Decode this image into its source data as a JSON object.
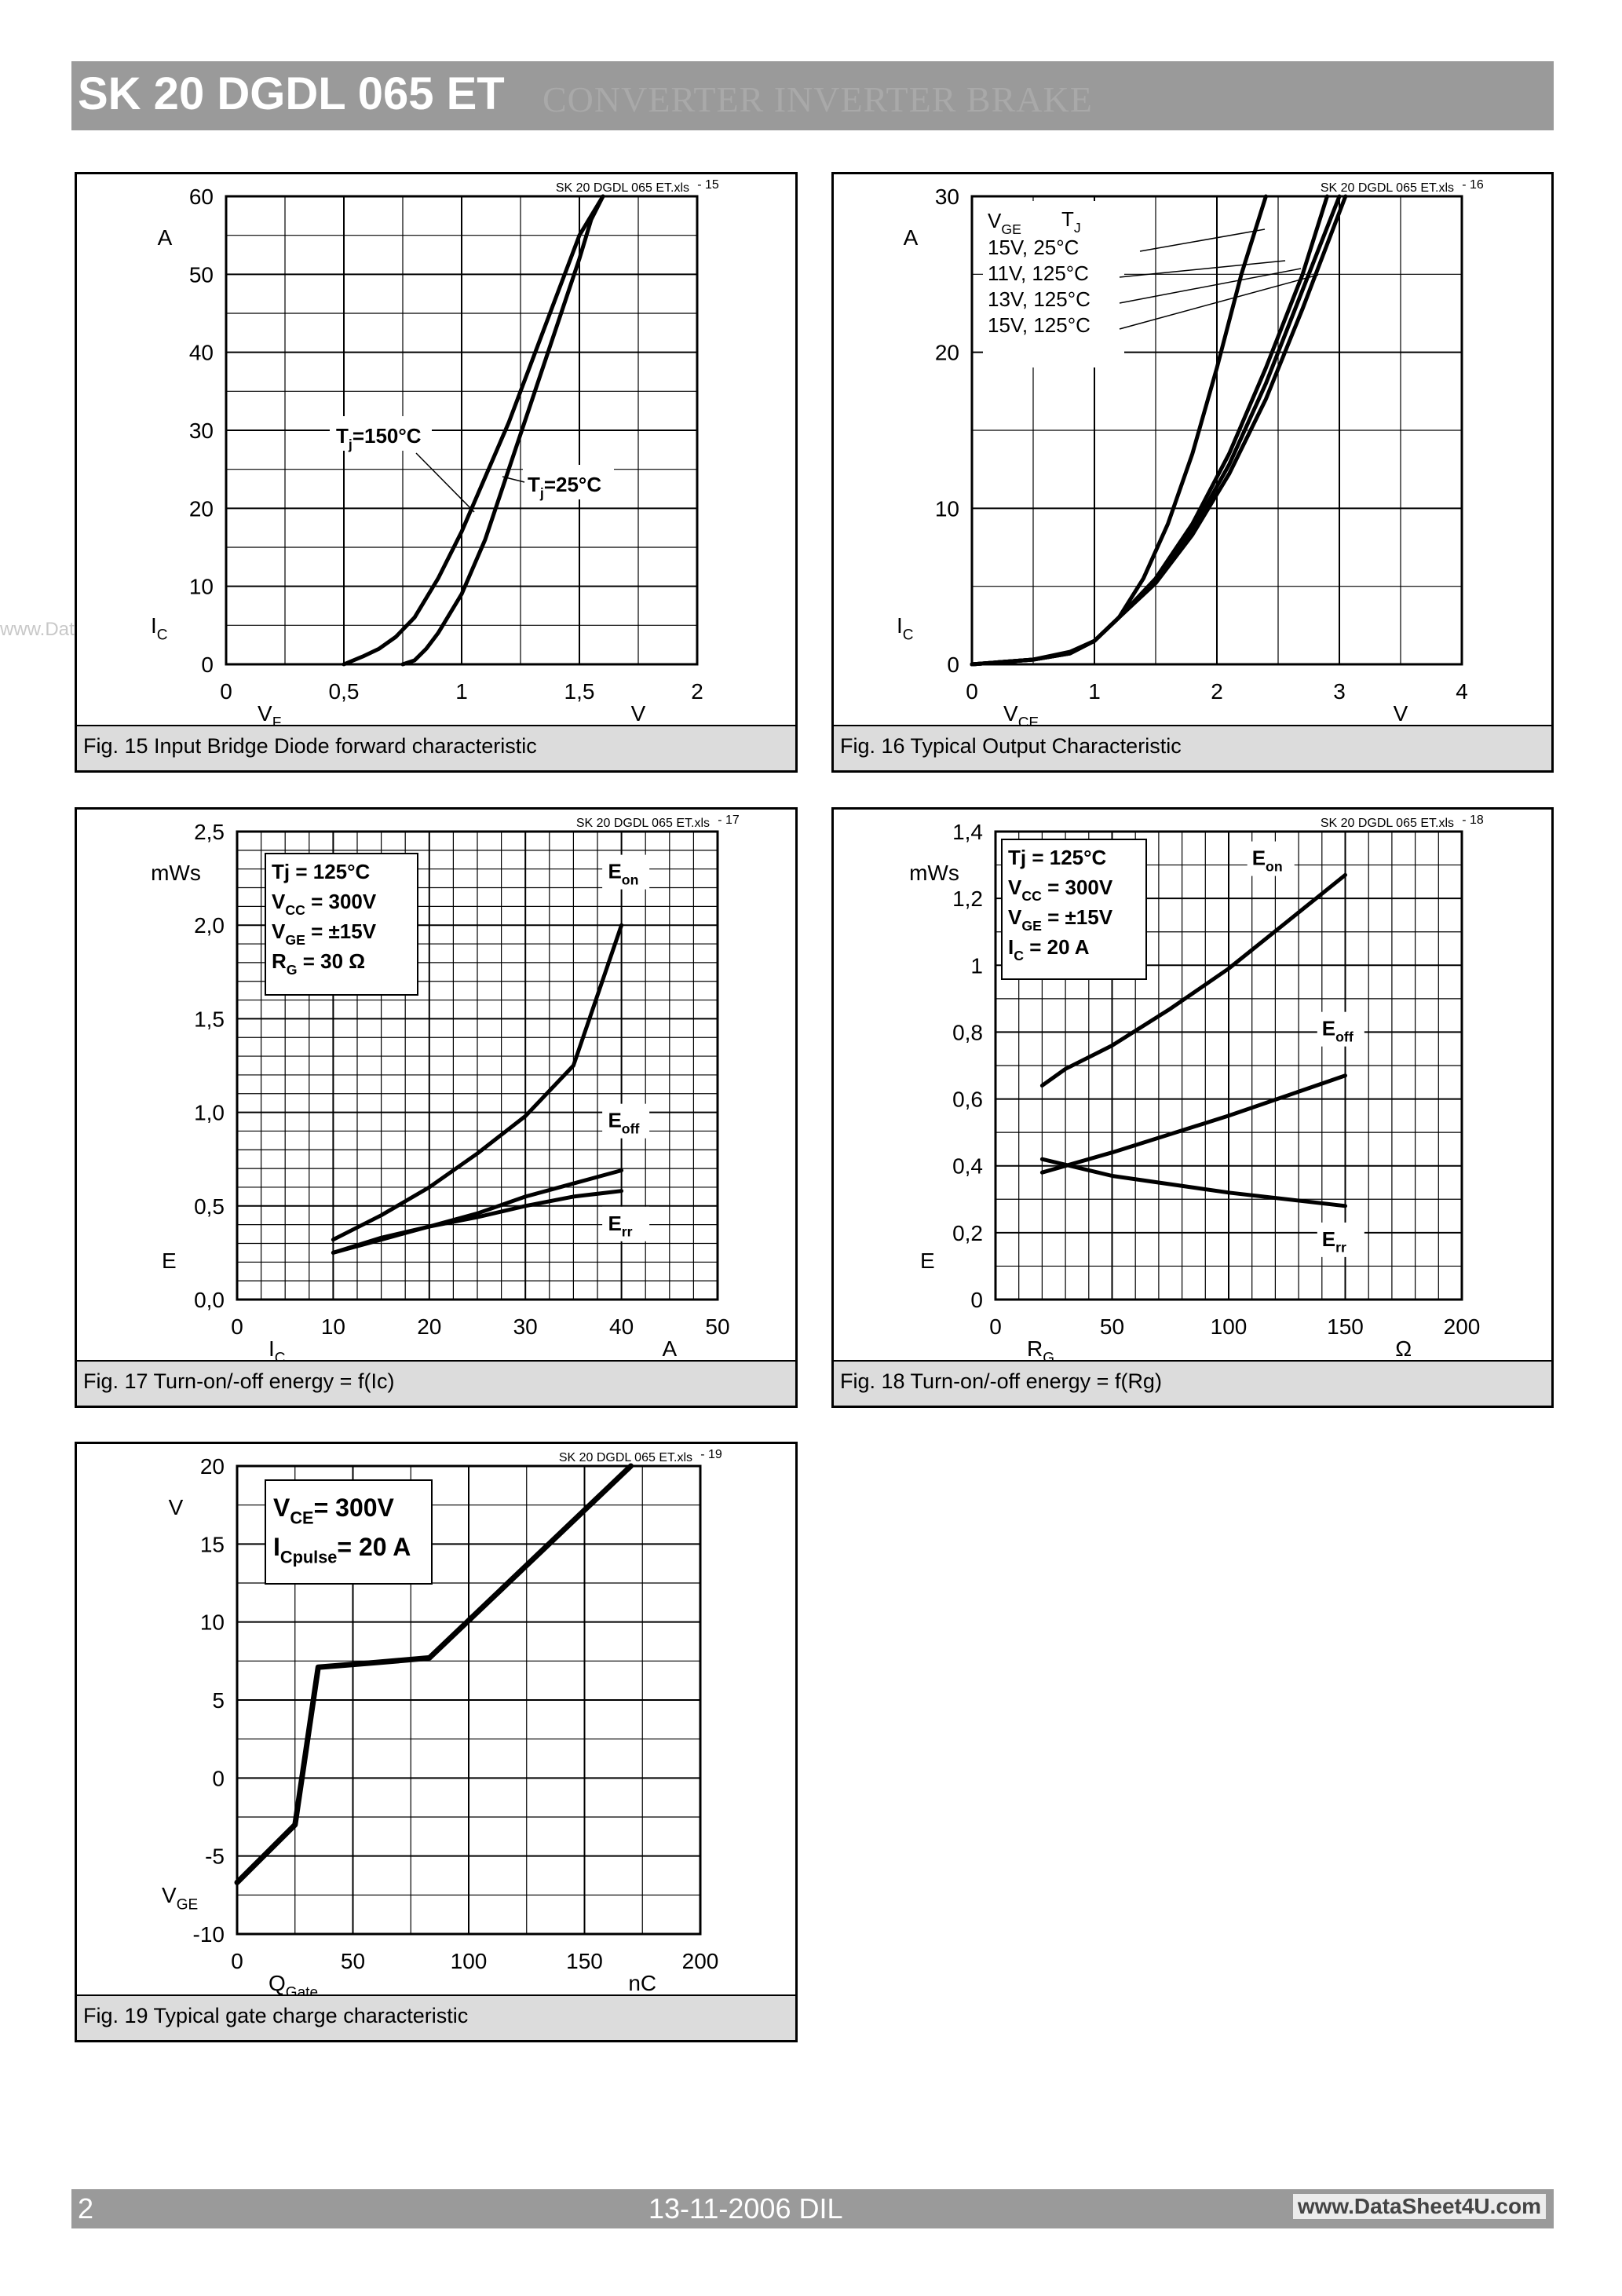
{
  "header": {
    "title": "SK 20 DGDL 065 ET",
    "subtitle": "CONVERTER INVERTER BRAKE"
  },
  "watermark": "www.DataSheet4U.com",
  "footer": {
    "page": "2",
    "date": "13-11-2006  DIL",
    "website": "www.DataSheet4U.com"
  },
  "chart_data": [
    {
      "id": "fig15",
      "type": "line",
      "title": "Fig. 15 Input Bridge Diode forward characteristic",
      "file_tag": "SK 20 DGDL 065 ET.xls",
      "fig_no": "15",
      "xunit": "V",
      "yunit": "A",
      "xsym": "V",
      "xsub": "F",
      "ysym": "I",
      "ysub": "C",
      "xlim": [
        0,
        2
      ],
      "ylim": [
        0,
        60
      ],
      "xticks": [
        0,
        0.5,
        1,
        1.5,
        2
      ],
      "yticks": [
        0,
        10,
        20,
        30,
        40,
        50,
        60
      ],
      "xticklabels": [
        "0",
        "0,5",
        "1",
        "1,5",
        "2"
      ],
      "yticklabels": [
        "0",
        "10",
        "20",
        "30",
        "40",
        "50",
        "60"
      ],
      "xminor": 0.25,
      "yminor": 5,
      "series": [
        {
          "name": "Tj=150°C",
          "x": [
            0.5,
            0.58,
            0.65,
            0.72,
            0.8,
            0.9,
            1.0,
            1.1,
            1.2,
            1.3,
            1.4,
            1.5,
            1.6
          ],
          "y": [
            0,
            1,
            2,
            3.5,
            6,
            11,
            17,
            24,
            31,
            39,
            47,
            55,
            61
          ]
        },
        {
          "name": "Tj=25°C",
          "x": [
            0.75,
            0.8,
            0.85,
            0.9,
            0.95,
            1.0,
            1.1,
            1.2,
            1.3,
            1.4,
            1.5,
            1.55,
            1.6
          ],
          "y": [
            0,
            0.5,
            2,
            4,
            6.5,
            9,
            16,
            25,
            34,
            43,
            52,
            57,
            61
          ]
        }
      ],
      "annotations": [
        {
          "text": "T",
          "sub": "j",
          "post": "=150°C"
        },
        {
          "text": "T",
          "sub": "j",
          "post": "=25°C"
        }
      ]
    },
    {
      "id": "fig16",
      "type": "line",
      "title": "Fig. 16 Typical Output Characteristic",
      "file_tag": "SK 20 DGDL 065 ET.xls",
      "fig_no": "16",
      "xunit": "V",
      "yunit": "A",
      "xsym": "V",
      "xsub": "CE",
      "ysym": "I",
      "ysub": "C",
      "xlim": [
        0,
        4
      ],
      "ylim": [
        0,
        30
      ],
      "xticks": [
        0,
        1,
        2,
        3,
        4
      ],
      "yticks": [
        0,
        10,
        20,
        30
      ],
      "xticklabels": [
        "0",
        "1",
        "2",
        "3",
        "4"
      ],
      "yticklabels": [
        "0",
        "10",
        "20",
        "30"
      ],
      "xminor": 0.5,
      "yminor": 5,
      "legend_header": {
        "vge": "V",
        "vge_sub": "GE",
        "tj": "T",
        "tj_sub": "J"
      },
      "series": [
        {
          "name": "15V,   25°C",
          "x": [
            0,
            0.5,
            0.8,
            1.0,
            1.2,
            1.4,
            1.6,
            1.8,
            2.0,
            2.2,
            2.4
          ],
          "y": [
            0,
            0.3,
            0.8,
            1.5,
            3,
            5.5,
            9,
            13.5,
            19,
            25,
            31
          ]
        },
        {
          "name": "11V,  125°C",
          "x": [
            0,
            0.5,
            0.8,
            1.0,
            1.2,
            1.5,
            1.8,
            2.1,
            2.4,
            2.7,
            2.9
          ],
          "y": [
            0,
            0.3,
            0.7,
            1.5,
            3,
            5.5,
            9,
            13.5,
            19,
            25,
            30.5
          ]
        },
        {
          "name": "13V,  125°C",
          "x": [
            0,
            0.5,
            0.8,
            1.0,
            1.2,
            1.5,
            1.8,
            2.1,
            2.4,
            2.7,
            3.0
          ],
          "y": [
            0,
            0.3,
            0.7,
            1.5,
            3,
            5.3,
            8.6,
            12.8,
            18,
            24,
            30.5
          ]
        },
        {
          "name": "15V,  125°C",
          "x": [
            0,
            0.5,
            0.8,
            1.0,
            1.2,
            1.5,
            1.8,
            2.1,
            2.4,
            2.7,
            3.05
          ],
          "y": [
            0,
            0.3,
            0.7,
            1.5,
            3,
            5.2,
            8.3,
            12.2,
            17,
            22.8,
            30.5
          ]
        }
      ]
    },
    {
      "id": "fig17",
      "type": "line",
      "title": "Fig. 17 Turn-on/-off energy = f(Ic)",
      "file_tag": "SK 20 DGDL 065 ET.xls",
      "fig_no": "17",
      "xunit": "A",
      "yunit": "mWs",
      "xsym": "I",
      "xsub": "C",
      "ysym": "E",
      "ysub": "",
      "xlim": [
        0,
        50
      ],
      "ylim": [
        0,
        2.5
      ],
      "xticks": [
        0,
        10,
        20,
        30,
        40,
        50
      ],
      "yticks": [
        0,
        0.5,
        1.0,
        1.5,
        2.0,
        2.5
      ],
      "xticklabels": [
        "0",
        "10",
        "20",
        "30",
        "40",
        "50"
      ],
      "yticklabels": [
        "0,0",
        "0,5",
        "1,0",
        "1,5",
        "2,0",
        "2,5"
      ],
      "xminor": 2.5,
      "yminor": 0.1,
      "box": [
        {
          "t": "Tj = 125°C",
          "s": ""
        },
        {
          "t": "V",
          "s": "CC",
          "p": " = 300V"
        },
        {
          "t": "V",
          "s": "GE",
          "p": " = ±15V"
        },
        {
          "t": "R",
          "s": "G",
          "p": " = 30 Ω"
        }
      ],
      "series": [
        {
          "name": "Eon",
          "x": [
            10,
            15,
            20,
            25,
            30,
            35,
            40
          ],
          "y": [
            0.32,
            0.45,
            0.6,
            0.78,
            0.98,
            1.25,
            2.0
          ]
        },
        {
          "name": "Eoff",
          "x": [
            10,
            15,
            20,
            25,
            30,
            35,
            40
          ],
          "y": [
            0.25,
            0.32,
            0.39,
            0.46,
            0.55,
            0.62,
            0.69
          ]
        },
        {
          "name": "Err",
          "x": [
            10,
            15,
            20,
            25,
            30,
            35,
            40
          ],
          "y": [
            0.25,
            0.33,
            0.39,
            0.44,
            0.5,
            0.55,
            0.58
          ]
        }
      ]
    },
    {
      "id": "fig18",
      "type": "line",
      "title": "Fig. 18 Turn-on/-off energy = f(Rg)",
      "file_tag": "SK 20 DGDL 065 ET.xls",
      "fig_no": "18",
      "xunit": "Ω",
      "yunit": "mWs",
      "xsym": "R",
      "xsub": "G",
      "ysym": "E",
      "ysub": "",
      "xlim": [
        0,
        200
      ],
      "ylim": [
        0,
        1.4
      ],
      "xticks": [
        0,
        50,
        100,
        150,
        200
      ],
      "yticks": [
        0,
        0.2,
        0.4,
        0.6,
        0.8,
        1,
        1.2,
        1.4
      ],
      "xticklabels": [
        "0",
        "50",
        "100",
        "150",
        "200"
      ],
      "yticklabels": [
        "0",
        "0,2",
        "0,4",
        "0,6",
        "0,8",
        "1",
        "1,2",
        "1,4"
      ],
      "xminor": 10,
      "yminor": 0.1,
      "box": [
        {
          "t": "Tj = 125°C",
          "s": ""
        },
        {
          "t": "V",
          "s": "CC",
          "p": " = 300V"
        },
        {
          "t": "V",
          "s": "GE",
          "p": " = ±15V"
        },
        {
          "t": "I",
          "s": "C",
          "p": " = 20 A"
        }
      ],
      "series": [
        {
          "name": "Eon",
          "x": [
            20,
            30,
            50,
            75,
            100,
            125,
            150
          ],
          "y": [
            0.64,
            0.69,
            0.76,
            0.87,
            0.99,
            1.13,
            1.27
          ]
        },
        {
          "name": "Eoff",
          "x": [
            20,
            50,
            100,
            150
          ],
          "y": [
            0.38,
            0.44,
            0.55,
            0.67
          ]
        },
        {
          "name": "Err",
          "x": [
            20,
            50,
            100,
            150
          ],
          "y": [
            0.42,
            0.37,
            0.32,
            0.28
          ]
        }
      ]
    },
    {
      "id": "fig19",
      "type": "line",
      "title": "Fig. 19 Typical gate charge characteristic",
      "file_tag": "SK 20 DGDL 065 ET.xls",
      "fig_no": "19",
      "xunit": "nC",
      "yunit": "V",
      "xsym": "Q",
      "xsub": "Gate",
      "ysym": "V",
      "ysub": "GE",
      "xlim": [
        0,
        200
      ],
      "ylim": [
        -10,
        20
      ],
      "xticks": [
        0,
        50,
        100,
        150,
        200
      ],
      "yticks": [
        -10,
        -5,
        0,
        5,
        10,
        15,
        20
      ],
      "xticklabels": [
        "0",
        "50",
        "100",
        "150",
        "200"
      ],
      "yticklabels": [
        "-10",
        "-5",
        "0",
        "5",
        "10",
        "15",
        "20"
      ],
      "xminor": 25,
      "yminor": 2.5,
      "box": [
        {
          "t": "V",
          "s": "CE",
          "p": "= 300V"
        },
        {
          "t": "I",
          "s": "Cpulse",
          "p": "= 20 A"
        }
      ],
      "series": [
        {
          "name": "VGE",
          "x": [
            0,
            25,
            35,
            60,
            83,
            170
          ],
          "y": [
            -6.7,
            -3,
            7.1,
            7.4,
            7.7,
            20
          ]
        }
      ]
    }
  ]
}
